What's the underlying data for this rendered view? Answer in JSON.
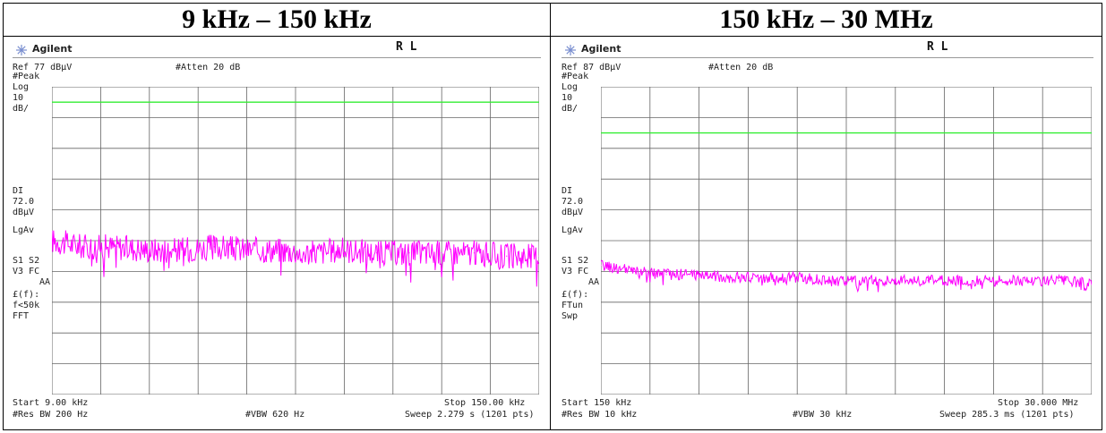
{
  "panels": [
    {
      "title": "9 kHz – 150 kHz",
      "logo": "Agilent",
      "mode": "R L",
      "ref": "Ref 77 dBµV",
      "atten": "#Atten 20 dB",
      "left_labels": [
        "#Peak",
        "Log",
        "10",
        "dB/",
        "DI",
        "72.0",
        "dBµV",
        "LgAv",
        "S1  S2",
        "V3  FC",
        "AA",
        "£(f):",
        "f<50k",
        "FFT"
      ],
      "start": "Start 9.00 kHz",
      "stop": "Stop 150.00 kHz",
      "res_bw": "#Res BW 200 Hz",
      "vbw": "#VBW 620 Hz",
      "sweep": "Sweep 2.279 s (1201 pts)"
    },
    {
      "title": "150 kHz – 30 MHz",
      "logo": "Agilent",
      "mode": "R L",
      "ref": "Ref 87 dBµV",
      "atten": "#Atten 20 dB",
      "left_labels": [
        "#Peak",
        "Log",
        "10",
        "dB/",
        "DI",
        "72.0",
        "dBµV",
        "LgAv",
        "S1  S2",
        "V3  FC",
        "AA",
        "£(f):",
        "FTun",
        "Swp"
      ],
      "start": "Start 150 kHz",
      "stop": "Stop 30.000 MHz",
      "res_bw": "#Res BW 10 kHz",
      "vbw": "#VBW 30 kHz",
      "sweep": "Sweep 285.3 ms (1201 pts)"
    }
  ],
  "chart_data": [
    {
      "type": "line",
      "title": "9 kHz – 150 kHz",
      "x_unit": "kHz",
      "y_unit": "dBµV",
      "xlim": [
        9,
        150
      ],
      "ylim": [
        -23,
        77
      ],
      "y_scale": "log display 10 dB/div",
      "display_line": 72.0,
      "grid": true,
      "series": [
        {
          "color": "#ff00ff",
          "x": [
            9,
            18.4,
            27.8,
            37.2,
            46.6,
            56,
            65.4,
            74.8,
            84.2,
            93.6,
            103,
            112.4,
            121.8,
            131.2,
            140.6,
            150
          ],
          "y": [
            27,
            25,
            25,
            24,
            24,
            25,
            24,
            24,
            23,
            24,
            23,
            23,
            23,
            23,
            22,
            22
          ]
        }
      ],
      "lines": [
        {
          "color": "#33ee33",
          "y": 72.0
        }
      ]
    },
    {
      "type": "line",
      "title": "150 kHz – 30 MHz",
      "x_unit": "MHz",
      "y_unit": "dBµV",
      "xlim": [
        0.15,
        30
      ],
      "ylim": [
        -13,
        87
      ],
      "y_scale": "log display 10 dB/div",
      "display_line": 72.0,
      "grid": true,
      "series": [
        {
          "color": "#ff00ff",
          "x": [
            0.15,
            2.14,
            4.13,
            6.12,
            8.11,
            10.1,
            12.09,
            14.08,
            16.07,
            18.06,
            20.05,
            22.04,
            24.03,
            26.02,
            28.01,
            30
          ],
          "y": [
            29,
            27,
            26,
            26,
            25,
            25,
            25,
            24,
            24,
            24,
            24,
            24,
            24,
            24,
            24,
            23
          ]
        }
      ],
      "lines": [
        {
          "color": "#33ee33",
          "y": 72.0
        }
      ]
    }
  ]
}
